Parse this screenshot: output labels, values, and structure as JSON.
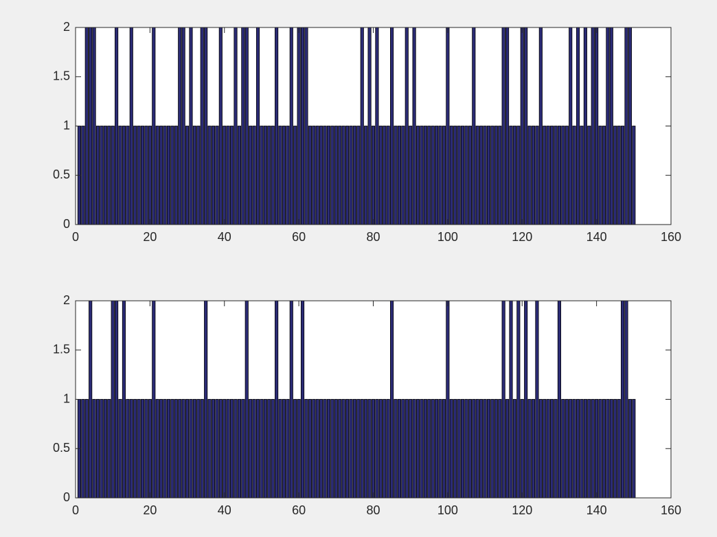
{
  "chart_data": [
    {
      "type": "bar",
      "color": "#2b2b75",
      "x": [
        1,
        2,
        3,
        4,
        5,
        6,
        7,
        8,
        9,
        10,
        11,
        12,
        13,
        14,
        15,
        16,
        17,
        18,
        19,
        20,
        21,
        22,
        23,
        24,
        25,
        26,
        27,
        28,
        29,
        30,
        31,
        32,
        33,
        34,
        35,
        36,
        37,
        38,
        39,
        40,
        41,
        42,
        43,
        44,
        45,
        46,
        47,
        48,
        49,
        50,
        51,
        52,
        53,
        54,
        55,
        56,
        57,
        58,
        59,
        60,
        61,
        62,
        63,
        64,
        65,
        66,
        67,
        68,
        69,
        70,
        71,
        72,
        73,
        74,
        75,
        76,
        77,
        78,
        79,
        80,
        81,
        82,
        83,
        84,
        85,
        86,
        87,
        88,
        89,
        90,
        91,
        92,
        93,
        94,
        95,
        96,
        97,
        98,
        99,
        100,
        101,
        102,
        103,
        104,
        105,
        106,
        107,
        108,
        109,
        110,
        111,
        112,
        113,
        114,
        115,
        116,
        117,
        118,
        119,
        120,
        121,
        122,
        123,
        124,
        125,
        126,
        127,
        128,
        129,
        130,
        131,
        132,
        133,
        134,
        135,
        136,
        137,
        138,
        139,
        140,
        141,
        142,
        143,
        144,
        145,
        146,
        147,
        148,
        149,
        150
      ],
      "values": [
        1,
        1,
        2,
        2,
        2,
        1,
        1,
        1,
        1,
        1,
        2,
        1,
        1,
        1,
        2,
        1,
        1,
        1,
        1,
        1,
        2,
        1,
        1,
        1,
        1,
        1,
        1,
        2,
        2,
        1,
        2,
        1,
        1,
        2,
        2,
        1,
        1,
        1,
        2,
        1,
        1,
        1,
        2,
        1,
        2,
        2,
        1,
        1,
        2,
        1,
        1,
        1,
        1,
        2,
        1,
        1,
        1,
        2,
        1,
        2,
        2,
        2,
        1,
        1,
        1,
        1,
        1,
        1,
        1,
        1,
        1,
        1,
        1,
        1,
        1,
        1,
        2,
        1,
        2,
        1,
        2,
        1,
        1,
        1,
        2,
        1,
        1,
        1,
        2,
        1,
        2,
        1,
        1,
        1,
        1,
        1,
        1,
        1,
        1,
        2,
        1,
        1,
        1,
        1,
        1,
        1,
        2,
        1,
        1,
        1,
        1,
        1,
        1,
        1,
        2,
        2,
        1,
        1,
        1,
        2,
        2,
        1,
        1,
        1,
        2,
        1,
        1,
        1,
        1,
        1,
        1,
        1,
        2,
        1,
        2,
        1,
        2,
        1,
        2,
        2,
        1,
        1,
        2,
        2,
        1,
        1,
        1,
        2,
        2,
        1
      ],
      "xlim": [
        0,
        160
      ],
      "ylim": [
        0,
        2
      ],
      "xticks": [
        0,
        20,
        40,
        60,
        80,
        100,
        120,
        140,
        160
      ],
      "yticks": [
        0,
        0.5,
        1,
        1.5,
        2
      ]
    },
    {
      "type": "bar",
      "color": "#2b2b75",
      "x": [
        1,
        2,
        3,
        4,
        5,
        6,
        7,
        8,
        9,
        10,
        11,
        12,
        13,
        14,
        15,
        16,
        17,
        18,
        19,
        20,
        21,
        22,
        23,
        24,
        25,
        26,
        27,
        28,
        29,
        30,
        31,
        32,
        33,
        34,
        35,
        36,
        37,
        38,
        39,
        40,
        41,
        42,
        43,
        44,
        45,
        46,
        47,
        48,
        49,
        50,
        51,
        52,
        53,
        54,
        55,
        56,
        57,
        58,
        59,
        60,
        61,
        62,
        63,
        64,
        65,
        66,
        67,
        68,
        69,
        70,
        71,
        72,
        73,
        74,
        75,
        76,
        77,
        78,
        79,
        80,
        81,
        82,
        83,
        84,
        85,
        86,
        87,
        88,
        89,
        90,
        91,
        92,
        93,
        94,
        95,
        96,
        97,
        98,
        99,
        100,
        101,
        102,
        103,
        104,
        105,
        106,
        107,
        108,
        109,
        110,
        111,
        112,
        113,
        114,
        115,
        116,
        117,
        118,
        119,
        120,
        121,
        122,
        123,
        124,
        125,
        126,
        127,
        128,
        129,
        130,
        131,
        132,
        133,
        134,
        135,
        136,
        137,
        138,
        139,
        140,
        141,
        142,
        143,
        144,
        145,
        146,
        147,
        148,
        149,
        150
      ],
      "values": [
        1,
        1,
        1,
        2,
        1,
        1,
        1,
        1,
        1,
        2,
        2,
        1,
        2,
        1,
        1,
        1,
        1,
        1,
        1,
        1,
        2,
        1,
        1,
        1,
        1,
        1,
        1,
        1,
        1,
        1,
        1,
        1,
        1,
        1,
        2,
        1,
        1,
        1,
        1,
        1,
        1,
        1,
        1,
        1,
        1,
        2,
        1,
        1,
        1,
        1,
        1,
        1,
        1,
        2,
        1,
        1,
        1,
        2,
        1,
        1,
        2,
        1,
        1,
        1,
        1,
        1,
        1,
        1,
        1,
        1,
        1,
        1,
        1,
        1,
        1,
        1,
        1,
        1,
        1,
        1,
        1,
        1,
        1,
        1,
        2,
        1,
        1,
        1,
        1,
        1,
        1,
        1,
        1,
        1,
        1,
        1,
        1,
        1,
        1,
        2,
        1,
        1,
        1,
        1,
        1,
        1,
        1,
        1,
        1,
        1,
        1,
        1,
        1,
        1,
        2,
        1,
        2,
        1,
        2,
        1,
        2,
        1,
        1,
        2,
        1,
        1,
        1,
        1,
        1,
        2,
        1,
        1,
        1,
        1,
        1,
        1,
        1,
        1,
        1,
        1,
        1,
        1,
        1,
        1,
        1,
        1,
        2,
        2,
        1,
        1
      ],
      "xlim": [
        0,
        160
      ],
      "ylim": [
        0,
        2
      ],
      "xticks": [
        0,
        20,
        40,
        60,
        80,
        100,
        120,
        140,
        160
      ],
      "yticks": [
        0,
        0.5,
        1,
        1.5,
        2
      ]
    }
  ]
}
